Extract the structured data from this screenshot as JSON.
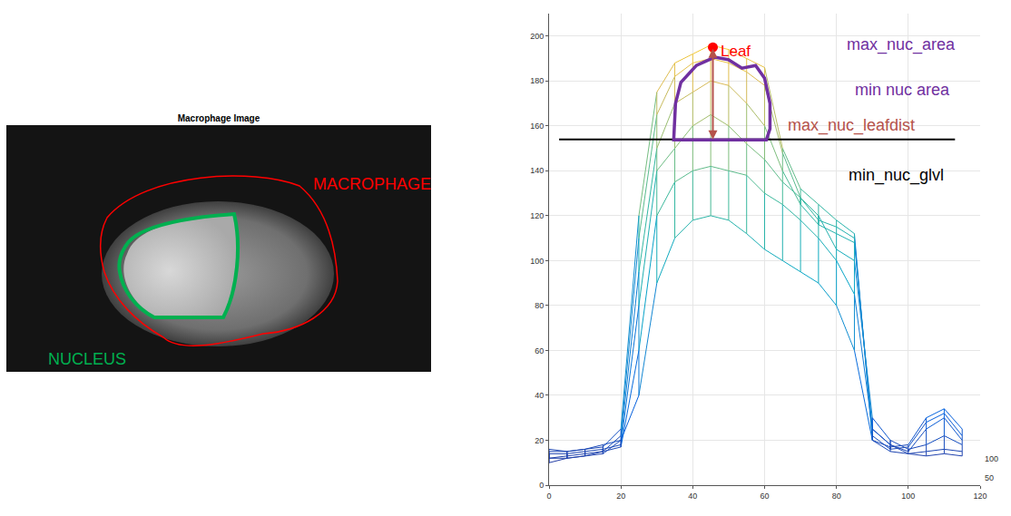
{
  "image_panel": {
    "title": "Macrophage Image",
    "labels": [
      {
        "text": "MACROPHAGE",
        "color": "#ff0000"
      },
      {
        "text": "NUCLEUS",
        "color": "#00b050"
      }
    ]
  },
  "chart_data": {
    "type": "line",
    "x": [
      0,
      5,
      10,
      15,
      20,
      25,
      30,
      35,
      40,
      45,
      50,
      55,
      60,
      65,
      70,
      75,
      80,
      85,
      90,
      95,
      100,
      105,
      110,
      115
    ],
    "series": [
      {
        "values": [
          15,
          15,
          16,
          17,
          25,
          120,
          175,
          188,
          192,
          196,
          194,
          190,
          186,
          150,
          132,
          125,
          118,
          112,
          20,
          17,
          18,
          30,
          34,
          25
        ]
      },
      {
        "values": [
          12,
          13,
          14,
          15,
          22,
          110,
          165,
          182,
          188,
          190,
          188,
          184,
          178,
          148,
          128,
          118,
          115,
          110,
          22,
          16,
          17,
          28,
          32,
          22
        ]
      },
      {
        "values": [
          10,
          12,
          13,
          14,
          20,
          95,
          150,
          170,
          175,
          180,
          178,
          170,
          160,
          140,
          125,
          116,
          112,
          108,
          25,
          18,
          15,
          25,
          30,
          20
        ]
      },
      {
        "values": [
          14,
          14,
          15,
          16,
          18,
          80,
          140,
          150,
          160,
          165,
          160,
          152,
          145,
          135,
          128,
          120,
          105,
          100,
          30,
          20,
          16,
          18,
          22,
          18
        ]
      },
      {
        "values": [
          12,
          12,
          13,
          15,
          17,
          60,
          120,
          135,
          140,
          142,
          140,
          138,
          130,
          125,
          118,
          110,
          100,
          85,
          25,
          18,
          14,
          15,
          16,
          15
        ]
      },
      {
        "values": [
          16,
          15,
          16,
          18,
          20,
          40,
          90,
          110,
          118,
          120,
          118,
          112,
          105,
          100,
          95,
          90,
          80,
          60,
          20,
          15,
          14,
          13,
          14,
          13
        ]
      }
    ],
    "xlim": [
      0,
      120
    ],
    "xticks": [
      0,
      20,
      40,
      60,
      80,
      100,
      120
    ],
    "ylim": [
      0,
      210
    ],
    "yticks": [
      0,
      20,
      40,
      60,
      80,
      100,
      120,
      140,
      160,
      180,
      200
    ],
    "zticks": [
      100,
      50
    ],
    "grid": true,
    "leaf": {
      "label": "Leaf",
      "x": 45.6,
      "y": 195,
      "color": "#ff0000"
    },
    "threshold": {
      "label": "min_nuc_glvl",
      "value": 154,
      "x": [
        2.8,
        113
      ],
      "color": "#000000"
    },
    "nucleus_contour": {
      "color": "#7030a0",
      "x": [
        34.7,
        35.2,
        36.7,
        41,
        46.1,
        49.9,
        53.7,
        57.5,
        60,
        61.5,
        61.5,
        60.5
      ],
      "y": [
        153.8,
        170,
        179.4,
        186.9,
        190.6,
        189.5,
        185.7,
        186.9,
        181.2,
        170,
        158.7,
        153.8
      ]
    },
    "annotations": [
      {
        "text": "max_nuc_area",
        "x": 98,
        "y": 196,
        "color": "#7030a0"
      },
      {
        "text": "min nuc area",
        "x": 98.5,
        "y": 176,
        "color": "#7030a0"
      },
      {
        "text": "max_nuc_leafdist",
        "x": 84,
        "y": 160,
        "color": "#b5524a"
      },
      {
        "text": "min_nuc_glvl",
        "x": 96.7,
        "y": 138,
        "color": "#000000"
      }
    ]
  }
}
